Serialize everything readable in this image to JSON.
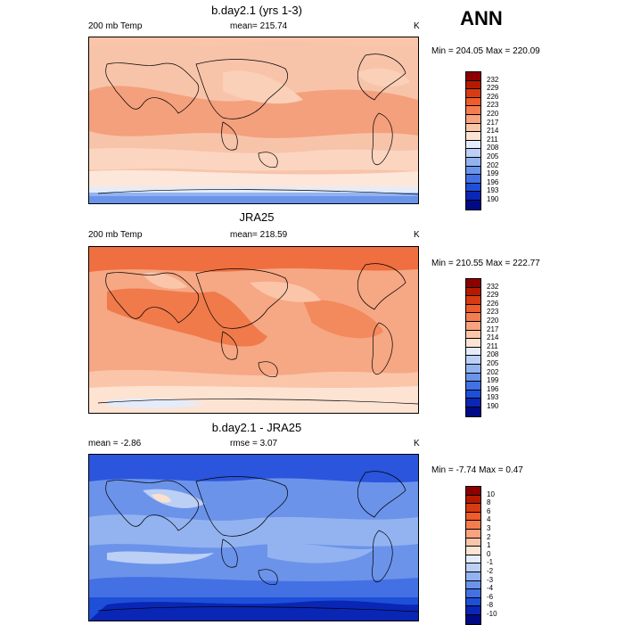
{
  "season": "ANN",
  "panels": [
    {
      "title": "b.day2.1 (yrs 1-3)",
      "left_label": "200 mb Temp",
      "center_label": "mean= 215.74",
      "units": "K",
      "minmax": "Min = 204.05 Max = 220.09",
      "base_color": "#f7c4aa",
      "colorbar_labels": [
        "232",
        "229",
        "226",
        "223",
        "220",
        "217",
        "214",
        "211",
        "208",
        "205",
        "202",
        "199",
        "196",
        "193",
        "190"
      ]
    },
    {
      "title": "JRA25",
      "left_label": "200 mb Temp",
      "center_label": "mean= 218.59",
      "units": "K",
      "minmax": "Min = 210.55 Max = 222.77",
      "base_color": "#f5a07d",
      "colorbar_labels": [
        "232",
        "229",
        "226",
        "223",
        "220",
        "217",
        "214",
        "211",
        "208",
        "205",
        "202",
        "199",
        "196",
        "193",
        "190"
      ]
    },
    {
      "title": "b.day2.1 - JRA25",
      "left_label": "mean =  -2.86",
      "center_label": "rmse =   3.07",
      "units": "K",
      "minmax": "Min =  -7.74 Max =   0.47",
      "base_color": "#5b86e8",
      "colorbar_labels": [
        "10",
        "8",
        "6",
        "4",
        "3",
        "2",
        "1",
        "0",
        "-1",
        "-2",
        "-3",
        "-4",
        "-6",
        "-8",
        "-10"
      ]
    }
  ],
  "colorbar_colors_abs": [
    "#8e0000",
    "#b51a00",
    "#d83a12",
    "#ef5b2a",
    "#f47d4f",
    "#f8a27f",
    "#fbc5aa",
    "#fde3d2",
    "#e4ecfb",
    "#bcd0f6",
    "#93b3f0",
    "#6b93ea",
    "#4371e4",
    "#1e4fd8",
    "#0a26b4",
    "#000a84"
  ],
  "colorbar_colors_diff": [
    "#8e0000",
    "#b51a00",
    "#d83a12",
    "#ef5b2a",
    "#f47d4f",
    "#f8a27f",
    "#fbc5aa",
    "#fde3d2",
    "#e4ecfb",
    "#bcd0f6",
    "#93b3f0",
    "#6b93ea",
    "#4371e4",
    "#1e4fd8",
    "#0a26b4",
    "#000a84"
  ]
}
